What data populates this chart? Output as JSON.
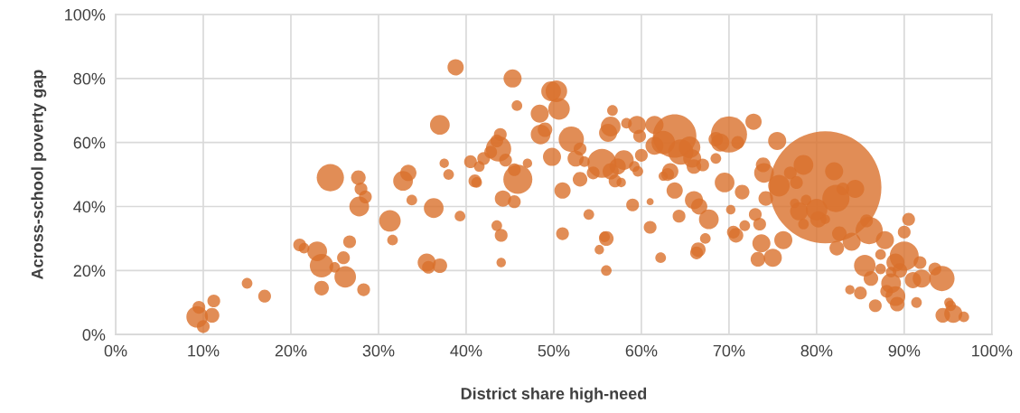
{
  "chart_data": {
    "type": "bubble",
    "xlabel": "District share high-need",
    "ylabel": "Across-school poverty gap",
    "xlim": [
      0,
      100
    ],
    "ylim": [
      0,
      100
    ],
    "xticks": [
      {
        "value": 0,
        "label": "0%"
      },
      {
        "value": 10,
        "label": "10%"
      },
      {
        "value": 20,
        "label": "20%"
      },
      {
        "value": 30,
        "label": "30%"
      },
      {
        "value": 40,
        "label": "40%"
      },
      {
        "value": 50,
        "label": "50%"
      },
      {
        "value": 60,
        "label": "60%"
      },
      {
        "value": 70,
        "label": "70%"
      },
      {
        "value": 80,
        "label": "80%"
      },
      {
        "value": 90,
        "label": "90%"
      },
      {
        "value": 100,
        "label": "100%"
      }
    ],
    "yticks": [
      {
        "value": 0,
        "label": "0%"
      },
      {
        "value": 20,
        "label": "20%"
      },
      {
        "value": 40,
        "label": "40%"
      },
      {
        "value": 60,
        "label": "60%"
      },
      {
        "value": 80,
        "label": "80%"
      },
      {
        "value": 100,
        "label": "100%"
      }
    ],
    "grid": true,
    "legend": false,
    "series": [
      {
        "color": "#d9702c",
        "x": [
          9.3,
          9.5,
          10,
          11,
          11.2,
          15,
          17,
          21,
          21.5,
          23,
          23.5,
          23.5,
          24.5,
          25,
          26,
          26.2,
          26.7,
          27.7,
          28,
          28.5,
          27.8,
          28.3,
          31.3,
          31.6,
          32.8,
          33.4,
          33.8,
          35.5,
          35.7,
          36.3,
          37,
          37,
          37.5,
          38,
          38.8,
          39.3,
          40.5,
          41,
          41.2,
          41.5,
          42,
          42.8,
          43.5,
          43.5,
          43.7,
          43.9,
          44,
          44,
          44.2,
          44.5,
          45.3,
          45.5,
          45.8,
          45.5,
          45.9,
          47,
          48.4,
          48.5,
          49,
          49.7,
          50.3,
          50.6,
          49.8,
          51,
          51,
          52,
          52.5,
          53,
          53,
          53.5,
          54,
          54.5,
          55.2,
          55.5,
          55.8,
          56,
          56,
          56.5,
          56.2,
          56.5,
          56.7,
          57,
          57.3,
          58,
          57.7,
          58.3,
          59,
          59.2,
          59.6,
          59.5,
          59.8,
          60,
          61,
          61,
          61.5,
          61.5,
          62.5,
          62.2,
          62.5,
          63.3,
          63,
          63.8,
          63.8,
          64.3,
          64.5,
          65.5,
          65.8,
          66,
          66,
          66.3,
          66.5,
          66.6,
          67,
          67.3,
          67.7,
          68.5,
          68.5,
          69.5,
          69,
          70,
          70.2,
          70.5,
          70.8,
          71,
          71.5,
          71.8,
          72.8,
          73,
          73.3,
          73.5,
          73.7,
          73.9,
          74,
          74.2,
          75,
          75.5,
          75.7,
          76.2,
          77,
          77.5,
          77.7,
          78,
          78.5,
          78.5,
          78.8,
          81,
          80,
          80.2,
          81,
          82.2,
          82,
          83,
          82.3,
          82.6,
          84,
          83.8,
          84.4,
          85,
          85.5,
          85.7,
          86.2,
          86,
          86.7,
          87.3,
          87.3,
          87.8,
          88,
          88.5,
          88.5,
          89,
          89,
          89.2,
          90,
          89.5,
          90,
          90.5,
          91,
          91.4,
          91.8,
          92,
          93.5,
          94.3,
          94.4,
          95.1,
          95.3,
          95.6,
          96.8
        ],
        "values": [
          5.5,
          8.5,
          2.5,
          6,
          10.5,
          16,
          12,
          28,
          27,
          26,
          21.5,
          14.5,
          49,
          21,
          24,
          18,
          29,
          49,
          45.5,
          43,
          40,
          14,
          35.5,
          29.5,
          48,
          50.5,
          42,
          22.5,
          21,
          39.5,
          65.5,
          21.5,
          53.5,
          50,
          83.5,
          37,
          54,
          48,
          47.5,
          52.5,
          55,
          57,
          60.5,
          34,
          58,
          62.5,
          31,
          22.5,
          42.5,
          54.5,
          80,
          41.5,
          71.5,
          51.5,
          48.5,
          53.5,
          69,
          62.5,
          64,
          76,
          76,
          70.5,
          55.5,
          45,
          31.5,
          61,
          55,
          48.5,
          58,
          54,
          37.5,
          50.5,
          26.5,
          53.5,
          30.5,
          30,
          20,
          65,
          63,
          51,
          70,
          48,
          52.5,
          54.5,
          47.5,
          66,
          40.5,
          52.5,
          51,
          65.5,
          62,
          56,
          33.5,
          41.5,
          65.5,
          59,
          49.5,
          24,
          60,
          51,
          50,
          62,
          45,
          37,
          57,
          58.5,
          55,
          42,
          52.5,
          25.5,
          26.5,
          40,
          53,
          30,
          36,
          55,
          61,
          47.5,
          60,
          62.5,
          39,
          32,
          31,
          60,
          44.5,
          34,
          66.5,
          37.5,
          23.5,
          34.5,
          28.5,
          53,
          50.5,
          42.5,
          24,
          60.5,
          46.5,
          29.5,
          50.5,
          41,
          47.5,
          38.5,
          53,
          34.5,
          42,
          46,
          39,
          36,
          36,
          42.5,
          51,
          45.5,
          27,
          31.5,
          29,
          14,
          45.5,
          13,
          21.5,
          35.5,
          17.5,
          32.5,
          9,
          20.5,
          25,
          29.5,
          13.5,
          19.5,
          16,
          22.5,
          12,
          9.5,
          24.5,
          20,
          32,
          36,
          17,
          10,
          22.5,
          17.5,
          20.5,
          17.5,
          6,
          10,
          9,
          6.5,
          5.5
        ],
        "sizes": [
          0.037,
          0.013,
          0.013,
          0.017,
          0.013,
          0.009,
          0.013,
          0.013,
          0.009,
          0.031,
          0.044,
          0.017,
          0.059,
          0.009,
          0.013,
          0.037,
          0.013,
          0.017,
          0.013,
          0.013,
          0.031,
          0.013,
          0.037,
          0.009,
          0.031,
          0.021,
          0.009,
          0.026,
          0.013,
          0.031,
          0.031,
          0.017,
          0.007,
          0.009,
          0.021,
          0.009,
          0.013,
          0.013,
          0.009,
          0.009,
          0.013,
          0.013,
          0.013,
          0.009,
          0.051,
          0.013,
          0.013,
          0.007,
          0.021,
          0.013,
          0.026,
          0.013,
          0.009,
          0.013,
          0.067,
          0.007,
          0.026,
          0.031,
          0.017,
          0.031,
          0.037,
          0.037,
          0.026,
          0.021,
          0.013,
          0.051,
          0.021,
          0.017,
          0.013,
          0.009,
          0.009,
          0.013,
          0.007,
          0.067,
          0.009,
          0.017,
          0.009,
          0.031,
          0.026,
          0.021,
          0.009,
          0.013,
          0.021,
          0.031,
          0.007,
          0.009,
          0.013,
          0.009,
          0.009,
          0.026,
          0.013,
          0.013,
          0.013,
          0.004,
          0.026,
          0.026,
          0.007,
          0.009,
          0.044,
          0.021,
          0.013,
          0.15,
          0.021,
          0.013,
          0.051,
          0.037,
          0.026,
          0.026,
          0.017,
          0.013,
          0.017,
          0.021,
          0.013,
          0.009,
          0.031,
          0.009,
          0.017,
          0.031,
          0.026,
          0.104,
          0.007,
          0.013,
          0.017,
          0.013,
          0.017,
          0.009,
          0.021,
          0.013,
          0.017,
          0.013,
          0.026,
          0.017,
          0.031,
          0.017,
          0.026,
          0.026,
          0.037,
          0.026,
          0.013,
          0.007,
          0.013,
          0.026,
          0.031,
          0.009,
          0.009,
          1,
          0.037,
          0.021,
          0.007,
          0.059,
          0.026,
          0.013,
          0.017,
          0.017,
          0.026,
          0.007,
          0.026,
          0.013,
          0.037,
          0.013,
          0.017,
          0.059,
          0.013,
          0.009,
          0.009,
          0.026,
          0.013,
          0.009,
          0.031,
          0.026,
          0.031,
          0.017,
          0.067,
          0.017,
          0.013,
          0.013,
          0.021,
          0.009,
          0.013,
          0.026,
          0.013,
          0.051,
          0.017,
          0.007,
          0.009,
          0.026,
          0.009
        ]
      }
    ]
  }
}
